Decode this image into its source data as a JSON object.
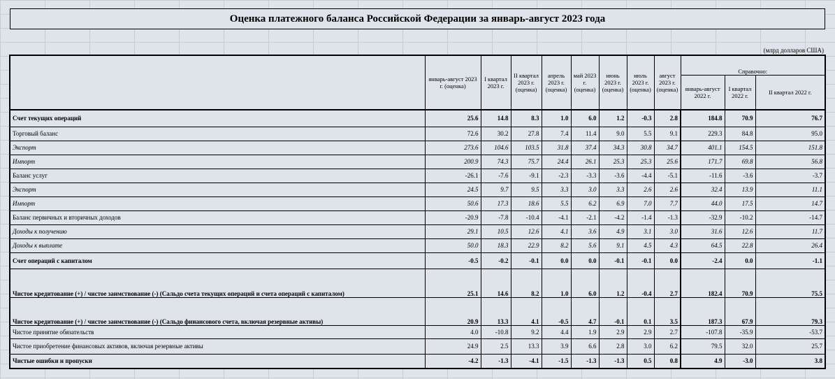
{
  "title": "Оценка платежного баланса Российской Федерации за январь-август 2023 года",
  "units": "(млрд долларов США)",
  "reference_label": "Справочно:",
  "columns": [
    "январь-август 2023 г. (оценка)",
    "I квартал 2023 г.",
    "II квартал 2023 г. (оценка)",
    "апрель 2023 г. (оценка)",
    "май 2023 г. (оценка)",
    "июнь 2023 г. (оценка)",
    "июль 2023 г. (оценка)",
    "август 2023 г. (оценка)",
    "январь-август 2022 г.",
    "I квартал 2022 г.",
    "II квартал 2022 г."
  ],
  "rows": [
    {
      "label": "Счет текущих операций",
      "values": [
        "25.6",
        "14.8",
        "8.3",
        "1.0",
        "6.0",
        "1.2",
        "-0.3",
        "2.8",
        "184.8",
        "70.9",
        "76.7"
      ]
    },
    {
      "label": "Торговый баланс",
      "values": [
        "72.6",
        "30.2",
        "27.8",
        "7.4",
        "11.4",
        "9.0",
        "5.5",
        "9.1",
        "229.3",
        "84.8",
        "95.0"
      ]
    },
    {
      "label": "Экспорт",
      "values": [
        "273.6",
        "104.6",
        "103.5",
        "31.8",
        "37.4",
        "34.3",
        "30.8",
        "34.7",
        "401.1",
        "154.5",
        "151.8"
      ]
    },
    {
      "label": "Импорт",
      "values": [
        "200.9",
        "74.3",
        "75.7",
        "24.4",
        "26.1",
        "25.3",
        "25.3",
        "25.6",
        "171.7",
        "69.8",
        "56.8"
      ]
    },
    {
      "label": "Баланс услуг",
      "values": [
        "-26.1",
        "-7.6",
        "-9.1",
        "-2.3",
        "-3.3",
        "-3.6",
        "-4.4",
        "-5.1",
        "-11.6",
        "-3.6",
        "-3.7"
      ]
    },
    {
      "label": "Экспорт",
      "values": [
        "24.5",
        "9.7",
        "9.5",
        "3.3",
        "3.0",
        "3.3",
        "2.6",
        "2.6",
        "32.4",
        "13.9",
        "11.1"
      ]
    },
    {
      "label": "Импорт",
      "values": [
        "50.6",
        "17.3",
        "18.6",
        "5.5",
        "6.2",
        "6.9",
        "7.0",
        "7.7",
        "44.0",
        "17.5",
        "14.7"
      ]
    },
    {
      "label": "Баланс первичных и вторичных доходов",
      "values": [
        "-20.9",
        "-7.8",
        "-10.4",
        "-4.1",
        "-2.1",
        "-4.2",
        "-1.4",
        "-1.3",
        "-32.9",
        "-10.2",
        "-14.7"
      ]
    },
    {
      "label": "Доходы к получению",
      "values": [
        "29.1",
        "10.5",
        "12.6",
        "4.1",
        "3.6",
        "4.9",
        "3.1",
        "3.0",
        "31.6",
        "12.6",
        "11.7"
      ]
    },
    {
      "label": "Доходы к выплате",
      "values": [
        "50.0",
        "18.3",
        "22.9",
        "8.2",
        "5.6",
        "9.1",
        "4.5",
        "4.3",
        "64.5",
        "22.8",
        "26.4"
      ]
    },
    {
      "label": "Счет операций с капиталом",
      "values": [
        "-0.5",
        "-0.2",
        "-0.1",
        "0.0",
        "0.0",
        "-0.1",
        "-0.1",
        "0.0",
        "-2.4",
        "0.0",
        "-1.1"
      ]
    },
    {
      "label": "Чистое кредитование (+) / чистое заимствование (-) (Сальдо счета текущих операций и счета операций с капиталом)",
      "values": [
        "25.1",
        "14.6",
        "8.2",
        "1.0",
        "6.0",
        "1.2",
        "-0.4",
        "2.7",
        "182.4",
        "70.9",
        "75.5"
      ]
    },
    {
      "label": "Чистое кредитование (+) / чистое заимствование (-) (Сальдо финансового счета, включая резервные активы)",
      "values": [
        "20.9",
        "13.3",
        "4.1",
        "-0.5",
        "4.7",
        "-0.1",
        "0.1",
        "3.5",
        "187.3",
        "67.9",
        "79.3"
      ]
    },
    {
      "label": "Чистое принятие обязательств",
      "values": [
        "4.0",
        "-10.8",
        "9.2",
        "4.4",
        "1.9",
        "2.9",
        "2.9",
        "2.7",
        "-107.8",
        "-35.9",
        "-53.7"
      ]
    },
    {
      "label": "Чистое приобретение финансовых активов, включая резервные активы",
      "values": [
        "24.9",
        "2.5",
        "13.3",
        "3.9",
        "6.6",
        "2.8",
        "3.0",
        "6.2",
        "79.5",
        "32.0",
        "25.7"
      ]
    },
    {
      "label": "Чистые ошибки и пропуски",
      "values": [
        "-4.2",
        "-1.3",
        "-4.1",
        "-1.5",
        "-1.3",
        "-1.3",
        "0.5",
        "0.8",
        "4.9",
        "-3.0",
        "3.8"
      ]
    }
  ]
}
